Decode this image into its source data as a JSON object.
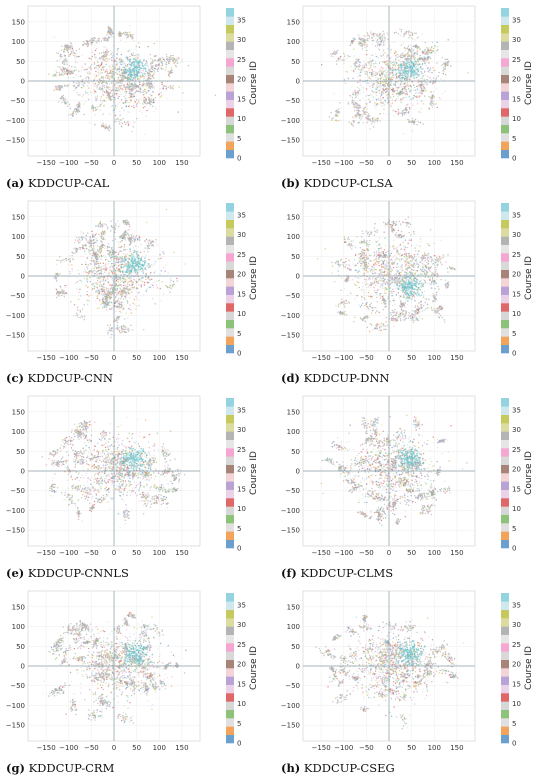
{
  "colorbar_palette": [
    "#6a9fce",
    "#f3a35a",
    "#e0e0e0",
    "#8dc27a",
    "#d7d7d7",
    "#e06767",
    "#ecd2e6",
    "#b9a2d6",
    "#f3d5d8",
    "#a88378",
    "#d9d9d9",
    "#f6a7d1",
    "#e6e6e6",
    "#b4b4b4",
    "#dcdca0",
    "#c6c95d",
    "#cfe8ee",
    "#93d4e0"
  ],
  "chart_data": [
    {
      "type": "scatter",
      "caption_label": "(a)",
      "caption_text": "KDDCUP-CAL",
      "colorbar": {
        "label": "Course ID",
        "ticks": [
          "0",
          "5",
          "10",
          "15",
          "20",
          "25",
          "30",
          "35"
        ],
        "range": [
          0,
          38
        ]
      },
      "xlim": [
        -190,
        190
      ],
      "ylim": [
        -190,
        190
      ],
      "xticks": [
        "−150",
        "−100",
        "−50",
        "0",
        "50",
        "100",
        "150"
      ],
      "yticks": [
        "150",
        "100",
        "50",
        "0",
        "−50",
        "−100",
        "−150"
      ],
      "grid": true,
      "cluster_note": "dense elongated cloud centered slightly right, cyan concentration upper-right"
    },
    {
      "type": "scatter",
      "caption_label": "(b)",
      "caption_text": "KDDCUP-CLSA",
      "colorbar": {
        "label": "Course ID",
        "ticks": [
          "0",
          "5",
          "10",
          "15",
          "20",
          "25",
          "30",
          "35"
        ],
        "range": [
          0,
          38
        ]
      },
      "xlim": [
        -190,
        190
      ],
      "ylim": [
        -190,
        190
      ],
      "xticks": [
        "−150",
        "−100",
        "−50",
        "0",
        "50",
        "100",
        "150"
      ],
      "yticks": [
        "150",
        "100",
        "50",
        "0",
        "−50",
        "−100",
        "−150"
      ],
      "grid": true
    },
    {
      "type": "scatter",
      "caption_label": "(c)",
      "caption_text": "KDDCUP-CNN",
      "colorbar": {
        "label": "Course ID",
        "ticks": [
          "0",
          "5",
          "10",
          "15",
          "20",
          "25",
          "30",
          "35"
        ],
        "range": [
          0,
          38
        ]
      },
      "xlim": [
        -190,
        190
      ],
      "ylim": [
        -190,
        190
      ],
      "xticks": [
        "−150",
        "−100",
        "−50",
        "0",
        "50",
        "100",
        "150"
      ],
      "yticks": [
        "150",
        "100",
        "50",
        "0",
        "−50",
        "−100",
        "−150"
      ],
      "grid": true
    },
    {
      "type": "scatter",
      "caption_label": "(d)",
      "caption_text": "KDDCUP-DNN",
      "colorbar": {
        "label": "Course ID",
        "ticks": [
          "0",
          "5",
          "10",
          "15",
          "20",
          "25",
          "30",
          "35"
        ],
        "range": [
          0,
          38
        ]
      },
      "xlim": [
        -190,
        190
      ],
      "ylim": [
        -190,
        190
      ],
      "xticks": [
        "−150",
        "−100",
        "−50",
        "0",
        "50",
        "100",
        "150"
      ],
      "yticks": [
        "150",
        "100",
        "50",
        "0",
        "−50",
        "−100",
        "−150"
      ],
      "grid": true
    },
    {
      "type": "scatter",
      "caption_label": "(e)",
      "caption_text": "KDDCUP-CNNLS",
      "colorbar": {
        "label": "Course ID",
        "ticks": [
          "0",
          "5",
          "10",
          "15",
          "20",
          "25",
          "30",
          "35"
        ],
        "range": [
          0,
          38
        ]
      },
      "xlim": [
        -190,
        190
      ],
      "ylim": [
        -190,
        190
      ],
      "xticks": [
        "−150",
        "−100",
        "−50",
        "0",
        "50",
        "100",
        "150"
      ],
      "yticks": [
        "150",
        "100",
        "50",
        "0",
        "−50",
        "−100",
        "−150"
      ],
      "grid": true
    },
    {
      "type": "scatter",
      "caption_label": "(f)",
      "caption_text": "KDDCUP-CLMS",
      "colorbar": {
        "label": "Course ID",
        "ticks": [
          "0",
          "5",
          "10",
          "15",
          "20",
          "25",
          "30",
          "35"
        ],
        "range": [
          0,
          38
        ]
      },
      "xlim": [
        -190,
        190
      ],
      "ylim": [
        -190,
        190
      ],
      "xticks": [
        "−150",
        "−100",
        "−50",
        "0",
        "50",
        "100",
        "150"
      ],
      "yticks": [
        "150",
        "100",
        "50",
        "0",
        "−50",
        "−100",
        "−150"
      ],
      "grid": true
    },
    {
      "type": "scatter",
      "caption_label": "(g)",
      "caption_text": "KDDCUP-CRM",
      "colorbar": {
        "label": "Course ID",
        "ticks": [
          "0",
          "5",
          "10",
          "15",
          "20",
          "25",
          "30",
          "35"
        ],
        "range": [
          0,
          38
        ]
      },
      "xlim": [
        -190,
        190
      ],
      "ylim": [
        -190,
        190
      ],
      "xticks": [
        "−150",
        "−100",
        "−50",
        "0",
        "50",
        "100",
        "150"
      ],
      "yticks": [
        "150",
        "100",
        "50",
        "0",
        "−50",
        "−100",
        "−150"
      ],
      "grid": true
    },
    {
      "type": "scatter",
      "caption_label": "(h)",
      "caption_text": "KDDCUP-CSEG",
      "colorbar": {
        "label": "Course ID",
        "ticks": [
          "0",
          "5",
          "10",
          "15",
          "20",
          "25",
          "30",
          "35"
        ],
        "range": [
          0,
          38
        ]
      },
      "xlim": [
        -190,
        190
      ],
      "ylim": [
        -190,
        190
      ],
      "xticks": [
        "−150",
        "−100",
        "−50",
        "0",
        "50",
        "100",
        "150"
      ],
      "yticks": [
        "150",
        "100",
        "50",
        "0",
        "−50",
        "−100",
        "−150"
      ],
      "grid": true
    }
  ]
}
